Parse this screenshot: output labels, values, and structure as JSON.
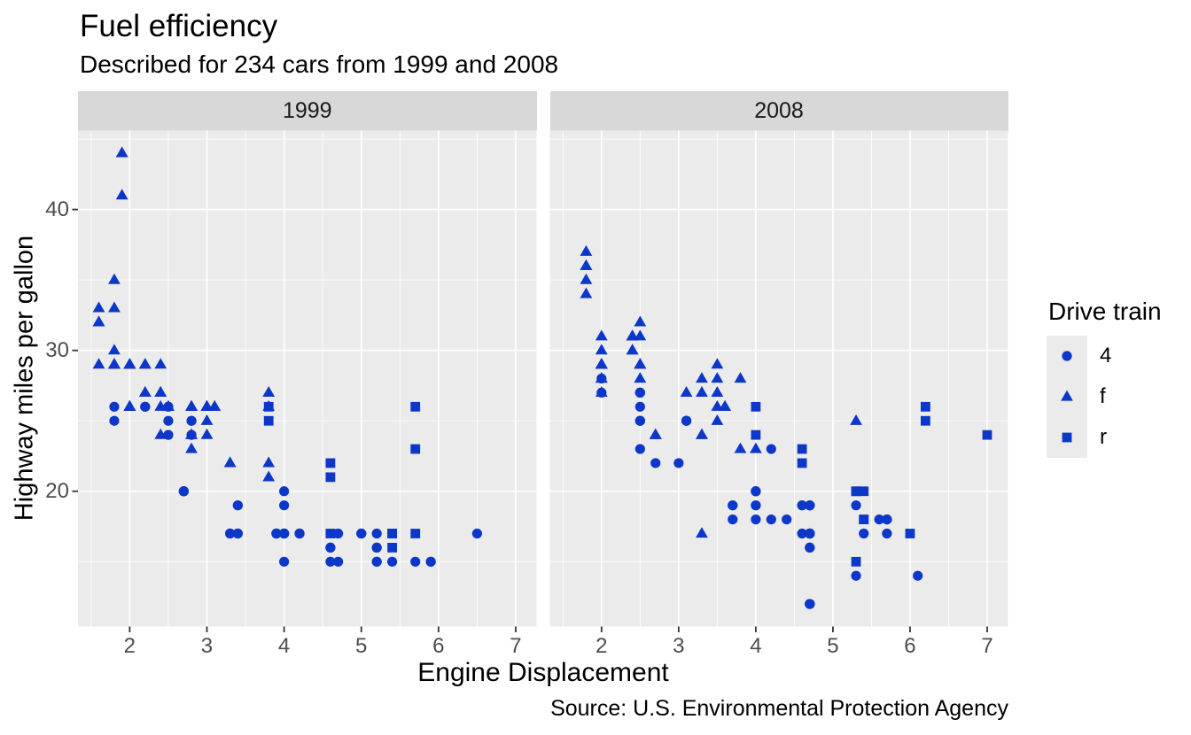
{
  "header": {
    "title": "Fuel efficiency",
    "subtitle": "Described for 234 cars from 1999 and 2008"
  },
  "caption": "Source: U.S. Environmental Protection Agency",
  "axes": {
    "x_title": "Engine Displacement",
    "y_title": "Highway miles per gallon",
    "x_ticks": [
      2,
      3,
      4,
      5,
      6,
      7
    ],
    "y_ticks": [
      20,
      30,
      40
    ]
  },
  "legend": {
    "title": "Drive train",
    "items": [
      {
        "shape": "circle",
        "label": "4"
      },
      {
        "shape": "triangle",
        "label": "f"
      },
      {
        "shape": "square",
        "label": "r"
      }
    ]
  },
  "colors": {
    "point": "#0C37C9",
    "panel_bg": "#EBEBEB",
    "strip_bg": "#D8D8D8",
    "grid": "#FFFFFF",
    "tick_text": "#4D4D4D",
    "strip_text": "#1A1A1A",
    "tick_mark": "#333333"
  },
  "chart_data": {
    "type": "scatter",
    "title": "Fuel efficiency",
    "subtitle": "Described for 234 cars from 1999 and 2008",
    "xlabel": "Engine Displacement",
    "ylabel": "Highway miles per gallon",
    "x_domain": [
      1.33,
      7.27
    ],
    "y_domain": [
      10.4,
      45.6
    ],
    "x_major": [
      2,
      3,
      4,
      5,
      6,
      7
    ],
    "x_minor": [
      1.5,
      2.5,
      3.5,
      4.5,
      5.5,
      6.5
    ],
    "y_major": [
      20,
      30,
      40
    ],
    "y_minor": [
      15,
      25,
      35,
      45
    ],
    "shape_map": {
      "4": "circle",
      "f": "triangle",
      "r": "square"
    },
    "facets": [
      {
        "label": "1999",
        "points": [
          [
            1.8,
            29,
            "f"
          ],
          [
            1.8,
            29,
            "f"
          ],
          [
            2.8,
            26,
            "f"
          ],
          [
            2.8,
            26,
            "f"
          ],
          [
            1.8,
            26,
            "4"
          ],
          [
            1.8,
            25,
            "4"
          ],
          [
            2.8,
            25,
            "4"
          ],
          [
            2.8,
            25,
            "4"
          ],
          [
            2.8,
            24,
            "4"
          ],
          [
            5.7,
            17,
            "r"
          ],
          [
            5.7,
            26,
            "r"
          ],
          [
            5.7,
            23,
            "r"
          ],
          [
            5.7,
            15,
            "4"
          ],
          [
            6.5,
            17,
            "4"
          ],
          [
            2.4,
            27,
            "f"
          ],
          [
            3.1,
            26,
            "f"
          ],
          [
            2.4,
            24,
            "f"
          ],
          [
            3.0,
            24,
            "f"
          ],
          [
            3.3,
            22,
            "f"
          ],
          [
            3.3,
            22,
            "f"
          ],
          [
            3.8,
            22,
            "f"
          ],
          [
            3.8,
            21,
            "f"
          ],
          [
            3.9,
            17,
            "4"
          ],
          [
            3.9,
            17,
            "4"
          ],
          [
            5.2,
            17,
            "4"
          ],
          [
            5.2,
            15,
            "4"
          ],
          [
            3.9,
            17,
            "4"
          ],
          [
            5.2,
            16,
            "4"
          ],
          [
            5.9,
            15,
            "4"
          ],
          [
            5.2,
            15,
            "4"
          ],
          [
            5.2,
            16,
            "4"
          ],
          [
            5.9,
            15,
            "4"
          ],
          [
            4.6,
            17,
            "r"
          ],
          [
            5.4,
            17,
            "r"
          ],
          [
            4.0,
            17,
            "4"
          ],
          [
            4.0,
            19,
            "4"
          ],
          [
            4.0,
            17,
            "4"
          ],
          [
            5.0,
            17,
            "4"
          ],
          [
            4.2,
            17,
            "4"
          ],
          [
            4.2,
            17,
            "4"
          ],
          [
            4.6,
            16,
            "4"
          ],
          [
            4.6,
            16,
            "4"
          ],
          [
            5.4,
            15,
            "4"
          ],
          [
            3.8,
            26,
            "r"
          ],
          [
            3.8,
            25,
            "r"
          ],
          [
            4.6,
            21,
            "r"
          ],
          [
            4.6,
            22,
            "r"
          ],
          [
            1.6,
            33,
            "f"
          ],
          [
            1.6,
            32,
            "f"
          ],
          [
            1.6,
            32,
            "f"
          ],
          [
            1.6,
            29,
            "f"
          ],
          [
            1.6,
            32,
            "f"
          ],
          [
            2.4,
            26,
            "f"
          ],
          [
            2.4,
            27,
            "f"
          ],
          [
            2.5,
            26,
            "f"
          ],
          [
            2.5,
            26,
            "f"
          ],
          [
            2.0,
            26,
            "f"
          ],
          [
            2.0,
            29,
            "f"
          ],
          [
            4.0,
            20,
            "4"
          ],
          [
            4.7,
            17,
            "4"
          ],
          [
            4.0,
            15,
            "4"
          ],
          [
            4.6,
            15,
            "4"
          ],
          [
            5.4,
            17,
            "r"
          ],
          [
            5.4,
            16,
            "r"
          ],
          [
            4.0,
            17,
            "4"
          ],
          [
            5.0,
            17,
            "4"
          ],
          [
            2.4,
            29,
            "f"
          ],
          [
            2.4,
            27,
            "f"
          ],
          [
            3.0,
            26,
            "f"
          ],
          [
            3.0,
            25,
            "f"
          ],
          [
            3.3,
            17,
            "4"
          ],
          [
            3.3,
            17,
            "4"
          ],
          [
            3.1,
            26,
            "f"
          ],
          [
            3.8,
            26,
            "f"
          ],
          [
            3.8,
            27,
            "f"
          ],
          [
            2.5,
            25,
            "4"
          ],
          [
            2.5,
            24,
            "4"
          ],
          [
            2.2,
            26,
            "4"
          ],
          [
            2.2,
            26,
            "4"
          ],
          [
            2.5,
            26,
            "4"
          ],
          [
            2.5,
            26,
            "4"
          ],
          [
            2.7,
            20,
            "4"
          ],
          [
            2.7,
            20,
            "4"
          ],
          [
            3.4,
            19,
            "4"
          ],
          [
            3.4,
            17,
            "4"
          ],
          [
            2.2,
            29,
            "f"
          ],
          [
            2.2,
            27,
            "f"
          ],
          [
            3.0,
            26,
            "f"
          ],
          [
            3.0,
            26,
            "f"
          ],
          [
            2.2,
            27,
            "f"
          ],
          [
            2.2,
            29,
            "f"
          ],
          [
            3.0,
            26,
            "f"
          ],
          [
            3.0,
            26,
            "f"
          ],
          [
            1.8,
            30,
            "f"
          ],
          [
            1.8,
            33,
            "f"
          ],
          [
            1.8,
            35,
            "f"
          ],
          [
            4.7,
            15,
            "4"
          ],
          [
            2.7,
            20,
            "4"
          ],
          [
            2.7,
            20,
            "4"
          ],
          [
            3.4,
            17,
            "4"
          ],
          [
            3.4,
            19,
            "4"
          ],
          [
            2.0,
            29,
            "f"
          ],
          [
            2.0,
            26,
            "f"
          ],
          [
            2.8,
            24,
            "f"
          ],
          [
            1.9,
            44,
            "f"
          ],
          [
            2.0,
            29,
            "f"
          ],
          [
            2.0,
            26,
            "f"
          ],
          [
            2.8,
            23,
            "f"
          ],
          [
            2.8,
            24,
            "f"
          ],
          [
            1.9,
            44,
            "f"
          ],
          [
            1.9,
            41,
            "f"
          ],
          [
            2.0,
            29,
            "f"
          ],
          [
            2.0,
            26,
            "f"
          ],
          [
            1.8,
            29,
            "f"
          ],
          [
            1.8,
            29,
            "f"
          ],
          [
            2.8,
            26,
            "f"
          ],
          [
            2.8,
            26,
            "f"
          ]
        ]
      },
      {
        "label": "2008",
        "points": [
          [
            2.0,
            31,
            "f"
          ],
          [
            2.0,
            30,
            "f"
          ],
          [
            3.1,
            27,
            "f"
          ],
          [
            2.0,
            28,
            "4"
          ],
          [
            2.0,
            27,
            "4"
          ],
          [
            3.1,
            25,
            "4"
          ],
          [
            3.1,
            25,
            "4"
          ],
          [
            3.1,
            25,
            "4"
          ],
          [
            4.2,
            23,
            "4"
          ],
          [
            5.3,
            20,
            "r"
          ],
          [
            5.3,
            15,
            "r"
          ],
          [
            5.3,
            20,
            "r"
          ],
          [
            6.0,
            17,
            "r"
          ],
          [
            6.2,
            26,
            "r"
          ],
          [
            6.2,
            25,
            "r"
          ],
          [
            7.0,
            24,
            "r"
          ],
          [
            5.3,
            19,
            "4"
          ],
          [
            5.3,
            14,
            "4"
          ],
          [
            2.4,
            30,
            "f"
          ],
          [
            3.5,
            29,
            "f"
          ],
          [
            3.6,
            26,
            "f"
          ],
          [
            3.3,
            24,
            "f"
          ],
          [
            3.3,
            24,
            "f"
          ],
          [
            3.3,
            17,
            "f"
          ],
          [
            3.8,
            23,
            "f"
          ],
          [
            4.0,
            23,
            "f"
          ],
          [
            3.7,
            19,
            "4"
          ],
          [
            3.7,
            18,
            "4"
          ],
          [
            4.7,
            19,
            "4"
          ],
          [
            4.7,
            19,
            "4"
          ],
          [
            4.7,
            12,
            "4"
          ],
          [
            4.7,
            17,
            "4"
          ],
          [
            4.7,
            17,
            "4"
          ],
          [
            4.7,
            12,
            "4"
          ],
          [
            5.7,
            18,
            "4"
          ],
          [
            4.7,
            16,
            "4"
          ],
          [
            4.7,
            12,
            "4"
          ],
          [
            4.7,
            17,
            "4"
          ],
          [
            4.7,
            17,
            "4"
          ],
          [
            4.7,
            16,
            "4"
          ],
          [
            4.7,
            12,
            "4"
          ],
          [
            5.7,
            17,
            "4"
          ],
          [
            5.4,
            18,
            "r"
          ],
          [
            4.0,
            19,
            "4"
          ],
          [
            4.6,
            19,
            "4"
          ],
          [
            4.6,
            17,
            "4"
          ],
          [
            5.4,
            17,
            "4"
          ],
          [
            4.0,
            26,
            "r"
          ],
          [
            4.0,
            24,
            "r"
          ],
          [
            4.6,
            23,
            "r"
          ],
          [
            4.6,
            22,
            "r"
          ],
          [
            5.4,
            20,
            "r"
          ],
          [
            1.8,
            34,
            "f"
          ],
          [
            1.8,
            36,
            "f"
          ],
          [
            1.8,
            36,
            "f"
          ],
          [
            2.0,
            29,
            "f"
          ],
          [
            2.4,
            30,
            "f"
          ],
          [
            2.4,
            31,
            "f"
          ],
          [
            3.3,
            28,
            "f"
          ],
          [
            2.0,
            28,
            "f"
          ],
          [
            2.0,
            27,
            "f"
          ],
          [
            2.7,
            24,
            "f"
          ],
          [
            2.7,
            24,
            "f"
          ],
          [
            2.7,
            24,
            "f"
          ],
          [
            3.0,
            22,
            "4"
          ],
          [
            3.7,
            19,
            "4"
          ],
          [
            4.7,
            19,
            "4"
          ],
          [
            4.7,
            12,
            "4"
          ],
          [
            5.7,
            18,
            "4"
          ],
          [
            6.1,
            14,
            "4"
          ],
          [
            4.2,
            18,
            "4"
          ],
          [
            4.4,
            18,
            "4"
          ],
          [
            5.4,
            18,
            "r"
          ],
          [
            4.0,
            19,
            "4"
          ],
          [
            4.6,
            19,
            "4"
          ],
          [
            2.5,
            31,
            "f"
          ],
          [
            2.5,
            32,
            "f"
          ],
          [
            3.5,
            27,
            "f"
          ],
          [
            3.5,
            26,
            "f"
          ],
          [
            3.5,
            25,
            "f"
          ],
          [
            4.0,
            20,
            "4"
          ],
          [
            5.6,
            18,
            "4"
          ],
          [
            3.8,
            28,
            "f"
          ],
          [
            5.3,
            25,
            "f"
          ],
          [
            2.5,
            27,
            "4"
          ],
          [
            2.5,
            25,
            "4"
          ],
          [
            2.5,
            26,
            "4"
          ],
          [
            2.5,
            23,
            "4"
          ],
          [
            2.5,
            25,
            "4"
          ],
          [
            2.5,
            27,
            "4"
          ],
          [
            2.5,
            25,
            "4"
          ],
          [
            2.5,
            27,
            "4"
          ],
          [
            4.0,
            20,
            "4"
          ],
          [
            4.7,
            17,
            "4"
          ],
          [
            2.4,
            31,
            "f"
          ],
          [
            2.4,
            31,
            "f"
          ],
          [
            3.5,
            28,
            "f"
          ],
          [
            2.4,
            31,
            "f"
          ],
          [
            2.4,
            31,
            "f"
          ],
          [
            3.3,
            27,
            "f"
          ],
          [
            1.8,
            37,
            "f"
          ],
          [
            1.8,
            35,
            "f"
          ],
          [
            5.7,
            18,
            "4"
          ],
          [
            2.7,
            22,
            "4"
          ],
          [
            4.0,
            18,
            "4"
          ],
          [
            4.0,
            20,
            "4"
          ],
          [
            2.0,
            29,
            "f"
          ],
          [
            2.0,
            29,
            "f"
          ],
          [
            2.0,
            29,
            "f"
          ],
          [
            2.0,
            29,
            "f"
          ],
          [
            2.5,
            29,
            "f"
          ],
          [
            2.5,
            29,
            "f"
          ],
          [
            2.5,
            28,
            "f"
          ],
          [
            2.5,
            29,
            "f"
          ],
          [
            2.0,
            28,
            "f"
          ],
          [
            2.0,
            29,
            "f"
          ],
          [
            3.6,
            26,
            "f"
          ]
        ]
      }
    ]
  }
}
